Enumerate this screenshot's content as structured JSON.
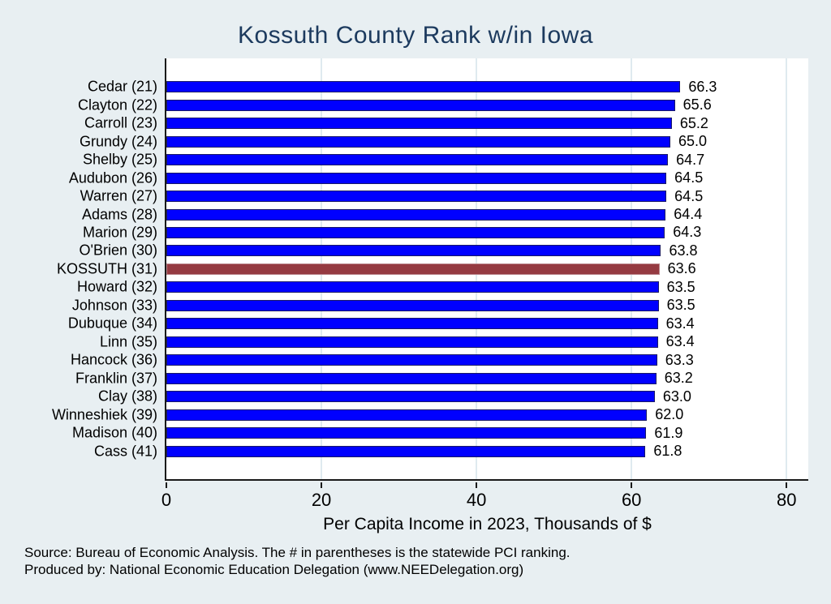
{
  "title": "Kossuth County Rank w/in Iowa",
  "chart_data": {
    "type": "bar",
    "orientation": "horizontal",
    "categories": [
      "Cedar (21)",
      "Clayton (22)",
      "Carroll (23)",
      "Grundy (24)",
      "Shelby (25)",
      "Audubon (26)",
      "Warren (27)",
      "Adams (28)",
      "Marion (29)",
      "O'Brien (30)",
      "KOSSUTH (31)",
      "Howard (32)",
      "Johnson (33)",
      "Dubuque (34)",
      "Linn (35)",
      "Hancock (36)",
      "Franklin (37)",
      "Clay (38)",
      "Winneshiek (39)",
      "Madison (40)",
      "Cass (41)"
    ],
    "values": [
      66.3,
      65.6,
      65.2,
      65.0,
      64.7,
      64.5,
      64.5,
      64.4,
      64.3,
      63.8,
      63.6,
      63.5,
      63.5,
      63.4,
      63.4,
      63.3,
      63.2,
      63.0,
      62.0,
      61.9,
      61.8
    ],
    "highlight_category": "KOSSUTH (31)",
    "title": "Kossuth County Rank w/in Iowa",
    "xlabel": "Per Capita Income in 2023, Thousands of $",
    "ylabel": "",
    "x_ticks": [
      0,
      20,
      40,
      60,
      80
    ],
    "xlim": [
      0,
      82.8
    ],
    "grid": true,
    "legend": "none",
    "value_labels": true
  },
  "colors": {
    "background": "#e8eff2",
    "plot_background": "#ffffff",
    "title_color": "#1c3a5e",
    "bar_fill": "#0000ff",
    "bar_border": "#1a1a66",
    "highlight_fill": "#953a41",
    "highlight_border": "#bb868c",
    "gridline": "#dfeaef",
    "axis_line": "#1a1a1a"
  },
  "footer": {
    "source_line": "Source: Bureau of Economic Analysis. The # in parentheses is the statewide PCI ranking.",
    "produced_line": "Produced by: National Economic Education Delegation (www.NEEDelegation.org)"
  }
}
